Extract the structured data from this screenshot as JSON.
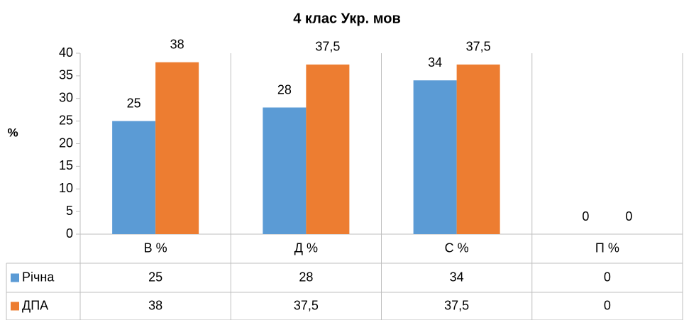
{
  "chart_data": {
    "type": "bar",
    "title": "4 клас Укр. мов",
    "y_label": "%",
    "categories": [
      "В %",
      "Д %",
      "С %",
      "П %"
    ],
    "series": [
      {
        "name": "Річна",
        "color": "#5b9bd5",
        "values": [
          25,
          28,
          34,
          0
        ]
      },
      {
        "name": "ДПА",
        "color": "#ed7d31",
        "values": [
          38,
          37.5,
          37.5,
          0
        ],
        "value_labels": [
          "38",
          "37,5",
          "37,5",
          "0"
        ]
      }
    ],
    "ylim": [
      0,
      40
    ],
    "yticks": [
      0,
      5,
      10,
      15,
      20,
      25,
      30,
      35,
      40
    ],
    "grid": false,
    "data_table": true
  }
}
